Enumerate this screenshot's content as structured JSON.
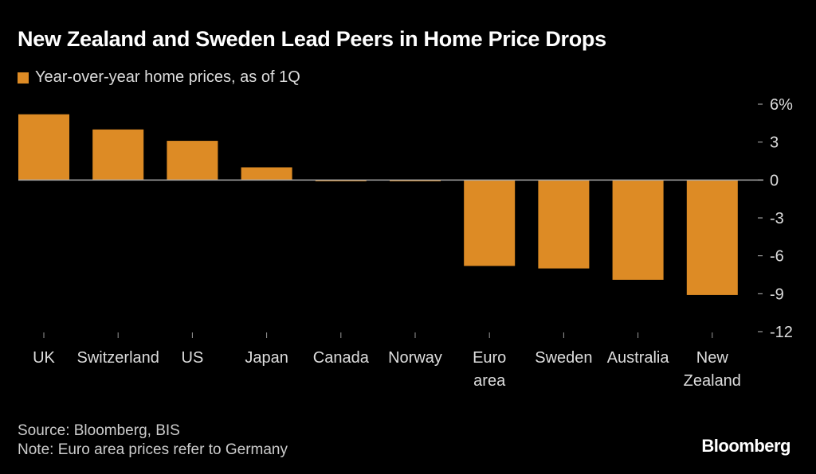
{
  "chart_data": {
    "type": "bar",
    "title": "New Zealand and Sweden Lead Peers in Home Price Drops",
    "legend": [
      "Year-over-year home prices, as of 1Q"
    ],
    "legend_placement": "top-left",
    "categories": [
      [
        "UK"
      ],
      [
        "Switzerland"
      ],
      [
        "US"
      ],
      [
        "Japan"
      ],
      [
        "Canada"
      ],
      [
        "Norway"
      ],
      [
        "Euro",
        "area"
      ],
      [
        "Sweden"
      ],
      [
        "Australia"
      ],
      [
        "New",
        "Zealand"
      ]
    ],
    "series": [
      {
        "name": "Year-over-year home prices, as of 1Q",
        "values": [
          5.2,
          4.0,
          3.1,
          1.0,
          -0.1,
          -0.1,
          -6.8,
          -7.0,
          -7.9,
          -9.1
        ]
      }
    ],
    "ylim": [
      -12,
      6
    ],
    "yticks": [
      6,
      3,
      0,
      -3,
      -6,
      -9,
      -12
    ],
    "ytick_labels": [
      "6%",
      "3",
      "0",
      "-3",
      "-6",
      "-9",
      "-12"
    ],
    "y_axis_side": "right",
    "grid": false,
    "bar_color": "#dd8b25",
    "zero_line_color": "#aaaaaa"
  },
  "footer": {
    "source": "Source: Bloomberg, BIS",
    "note": "Note: Euro area prices refer to Germany",
    "logo": "Bloomberg"
  }
}
